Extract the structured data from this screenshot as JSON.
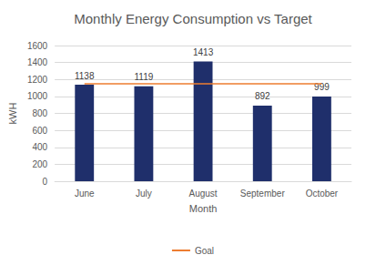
{
  "chart_data": {
    "type": "bar",
    "title": "Monthly Energy Consumption vs Target",
    "x_label": "Month",
    "y_label": "kWH",
    "categories": [
      "June",
      "July",
      "August",
      "September",
      "October"
    ],
    "series": [
      {
        "type": "bar",
        "color": "#1f2f6b",
        "values": [
          1138,
          1119,
          1413,
          892,
          999
        ],
        "data_labels": true
      },
      {
        "name": "Goal",
        "type": "line",
        "color": "#ed7d31",
        "line_style": "solid",
        "values": [
          1150,
          1150,
          1150,
          1150,
          1150
        ]
      }
    ],
    "ylim": [
      0,
      1600
    ],
    "yticks": [
      0,
      200,
      400,
      600,
      800,
      1000,
      1200,
      1400,
      1600
    ],
    "grid": true,
    "legend": "bottom"
  }
}
